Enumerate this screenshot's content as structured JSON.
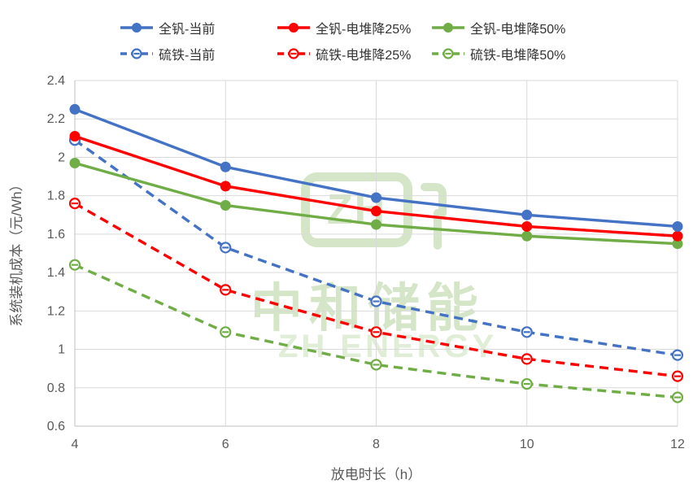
{
  "chart_data": {
    "type": "line",
    "x": [
      4,
      6,
      8,
      10,
      12
    ],
    "xticks": [
      {
        "value": 4,
        "label": "4"
      },
      {
        "value": 6,
        "label": "6"
      },
      {
        "value": 8,
        "label": "8"
      },
      {
        "value": 10,
        "label": "10"
      },
      {
        "value": 12,
        "label": "12"
      }
    ],
    "yticks": [
      {
        "value": 2.4,
        "label": "2.4"
      },
      {
        "value": 2.2,
        "label": "2.2"
      },
      {
        "value": 2.0,
        "label": "2"
      },
      {
        "value": 1.8,
        "label": "1.8"
      },
      {
        "value": 1.6,
        "label": "1.6"
      },
      {
        "value": 1.4,
        "label": "1.4"
      },
      {
        "value": 1.2,
        "label": "1.2"
      },
      {
        "value": 1.0,
        "label": "1"
      },
      {
        "value": 0.8,
        "label": "0.8"
      },
      {
        "value": 0.6,
        "label": "0.6"
      }
    ],
    "xlim": [
      4,
      12
    ],
    "ylim": [
      0.6,
      2.4
    ],
    "xlabel": "放电时长（h）",
    "ylabel": "系统装机成本（元/Wh）",
    "grid": true,
    "legend_position": "top",
    "series": [
      {
        "name": "全钒-当前",
        "color": "#4472C4",
        "dash": false,
        "marker": "filled",
        "values": [
          2.25,
          1.95,
          1.79,
          1.7,
          1.64
        ]
      },
      {
        "name": "全钒-电堆降25%",
        "color": "#FF0000",
        "dash": false,
        "marker": "filled",
        "values": [
          2.11,
          1.85,
          1.72,
          1.64,
          1.59
        ]
      },
      {
        "name": "全钒-电堆降50%",
        "color": "#70AD47",
        "dash": false,
        "marker": "filled",
        "values": [
          1.97,
          1.75,
          1.65,
          1.59,
          1.55
        ]
      },
      {
        "name": "硫铁-当前",
        "color": "#4472C4",
        "dash": true,
        "marker": "open",
        "values": [
          2.09,
          1.53,
          1.25,
          1.09,
          0.97
        ]
      },
      {
        "name": "硫铁-电堆降25%",
        "color": "#FF0000",
        "dash": true,
        "marker": "open",
        "values": [
          1.76,
          1.31,
          1.09,
          0.95,
          0.86
        ]
      },
      {
        "name": "硫铁-电堆降50%",
        "color": "#70AD47",
        "dash": true,
        "marker": "open",
        "values": [
          1.44,
          1.09,
          0.92,
          0.82,
          0.75
        ]
      }
    ],
    "colors": {
      "gridline": "#D9D9D9",
      "axis_line": "#BFBFBF",
      "tick_label": "#595959",
      "axis_title": "#595959",
      "legend_text": "#333333"
    }
  },
  "watermark": {
    "logo_text": "ZH",
    "title": "中和储能",
    "subtitle": "ZH ENERGY"
  }
}
